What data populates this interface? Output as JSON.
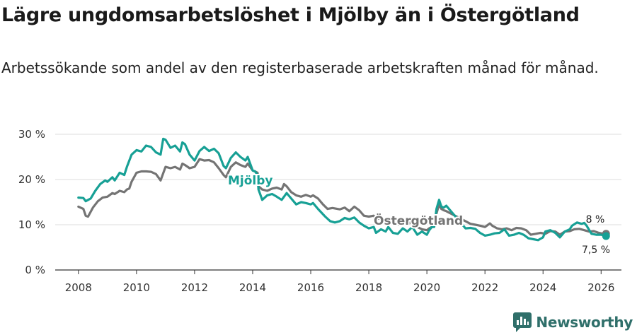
{
  "title": "Lägre ungdomsarbetslöshet i Mjölby än i Östergötland",
  "subtitle": "Arbetssökande som andel av den registerbaserade arbetskraften månad för månad.",
  "brand": "Newsworthy",
  "colors": {
    "mjolby": "#17a095",
    "ostergotland": "#747474",
    "grid": "#dddddd",
    "axis": "#333333"
  },
  "chart_data": {
    "type": "line",
    "title": "Lägre ungdomsarbetslöshet i Mjölby än i Östergötland",
    "xlabel": "",
    "ylabel": "",
    "xlim": [
      2007.2,
      2026.7
    ],
    "ylim": [
      0,
      30
    ],
    "y_ticks": [
      0,
      10,
      20,
      30
    ],
    "y_tick_labels": [
      "0 %",
      "10 %",
      "20 %",
      "30 %"
    ],
    "x_ticks": [
      2008,
      2010,
      2012,
      2014,
      2016,
      2018,
      2020,
      2022,
      2024,
      2026
    ],
    "x_tick_labels": [
      "2008",
      "2010",
      "2012",
      "2014",
      "2016",
      "2018",
      "2020",
      "2022",
      "2024",
      "2026"
    ],
    "series": [
      {
        "name": "Mjölby",
        "label": "Mjölby",
        "end_label": "7,5 %",
        "values": [
          [
            2008.0,
            16.0
          ],
          [
            2008.17,
            15.9
          ],
          [
            2008.25,
            15.2
          ],
          [
            2008.42,
            15.8
          ],
          [
            2008.58,
            17.5
          ],
          [
            2008.75,
            19.0
          ],
          [
            2008.92,
            19.8
          ],
          [
            2009.0,
            19.5
          ],
          [
            2009.17,
            20.5
          ],
          [
            2009.25,
            19.8
          ],
          [
            2009.42,
            21.5
          ],
          [
            2009.58,
            21.0
          ],
          [
            2009.67,
            22.8
          ],
          [
            2009.83,
            25.5
          ],
          [
            2010.0,
            26.5
          ],
          [
            2010.17,
            26.2
          ],
          [
            2010.33,
            27.5
          ],
          [
            2010.5,
            27.2
          ],
          [
            2010.67,
            26.0
          ],
          [
            2010.83,
            25.5
          ],
          [
            2010.92,
            29.0
          ],
          [
            2011.0,
            28.8
          ],
          [
            2011.17,
            27.0
          ],
          [
            2011.33,
            27.5
          ],
          [
            2011.5,
            26.2
          ],
          [
            2011.58,
            28.2
          ],
          [
            2011.67,
            27.8
          ],
          [
            2011.83,
            25.5
          ],
          [
            2012.0,
            24.2
          ],
          [
            2012.17,
            26.3
          ],
          [
            2012.33,
            27.2
          ],
          [
            2012.5,
            26.3
          ],
          [
            2012.67,
            26.8
          ],
          [
            2012.83,
            25.8
          ],
          [
            2013.0,
            23.0
          ],
          [
            2013.08,
            22.5
          ],
          [
            2013.25,
            24.8
          ],
          [
            2013.42,
            26.0
          ],
          [
            2013.58,
            25.0
          ],
          [
            2013.75,
            24.2
          ],
          [
            2013.83,
            25.0
          ],
          [
            2014.0,
            22.0
          ],
          [
            2014.08,
            21.8
          ],
          [
            2014.17,
            21.0
          ],
          [
            2014.2,
            17.8
          ],
          [
            2014.33,
            15.5
          ],
          [
            2014.5,
            16.5
          ],
          [
            2014.67,
            16.8
          ],
          [
            2014.83,
            16.2
          ],
          [
            2015.0,
            15.5
          ],
          [
            2015.17,
            17.0
          ],
          [
            2015.33,
            15.8
          ],
          [
            2015.5,
            14.5
          ],
          [
            2015.67,
            15.0
          ],
          [
            2015.83,
            14.8
          ],
          [
            2016.0,
            14.5
          ],
          [
            2016.08,
            14.8
          ],
          [
            2016.25,
            13.5
          ],
          [
            2016.5,
            11.8
          ],
          [
            2016.67,
            10.8
          ],
          [
            2016.83,
            10.5
          ],
          [
            2017.0,
            10.8
          ],
          [
            2017.17,
            11.5
          ],
          [
            2017.33,
            11.2
          ],
          [
            2017.5,
            11.6
          ],
          [
            2017.67,
            10.5
          ],
          [
            2017.83,
            9.8
          ],
          [
            2018.0,
            9.2
          ],
          [
            2018.17,
            9.5
          ],
          [
            2018.25,
            8.2
          ],
          [
            2018.42,
            9.0
          ],
          [
            2018.58,
            8.5
          ],
          [
            2018.67,
            9.5
          ],
          [
            2018.83,
            8.2
          ],
          [
            2019.0,
            8.0
          ],
          [
            2019.17,
            9.2
          ],
          [
            2019.33,
            8.5
          ],
          [
            2019.5,
            9.5
          ],
          [
            2019.67,
            7.8
          ],
          [
            2019.83,
            8.5
          ],
          [
            2020.0,
            7.8
          ],
          [
            2020.08,
            8.8
          ],
          [
            2020.17,
            9.5
          ],
          [
            2020.25,
            9.5
          ],
          [
            2020.33,
            13.5
          ],
          [
            2020.42,
            15.5
          ],
          [
            2020.5,
            14.0
          ],
          [
            2020.58,
            13.8
          ],
          [
            2020.67,
            14.2
          ],
          [
            2021.33,
            9.2
          ],
          [
            2021.5,
            9.3
          ],
          [
            2021.67,
            9.1
          ],
          [
            2021.83,
            8.2
          ],
          [
            2022.0,
            7.6
          ],
          [
            2022.17,
            7.8
          ],
          [
            2022.33,
            8.1
          ],
          [
            2022.5,
            8.2
          ],
          [
            2022.67,
            9.0
          ],
          [
            2022.83,
            7.6
          ],
          [
            2023.0,
            7.8
          ],
          [
            2023.17,
            8.2
          ],
          [
            2023.33,
            7.8
          ],
          [
            2023.5,
            7.0
          ],
          [
            2023.67,
            6.8
          ],
          [
            2023.83,
            6.6
          ],
          [
            2024.0,
            7.2
          ],
          [
            2024.08,
            8.5
          ],
          [
            2024.25,
            8.8
          ],
          [
            2024.42,
            8.2
          ],
          [
            2024.58,
            7.2
          ],
          [
            2024.75,
            8.5
          ],
          [
            2024.92,
            9.0
          ],
          [
            2025.0,
            9.8
          ],
          [
            2025.17,
            10.5
          ],
          [
            2025.33,
            10.2
          ],
          [
            2025.42,
            10.4
          ],
          [
            2025.5,
            9.8
          ],
          [
            2025.67,
            8.0
          ],
          [
            2025.83,
            7.8
          ],
          [
            2026.0,
            7.8
          ],
          [
            2026.17,
            7.5
          ]
        ]
      },
      {
        "name": "Östergötland",
        "label": "Östergötland",
        "end_label": "8 %",
        "values": [
          [
            2008.0,
            14.0
          ],
          [
            2008.17,
            13.5
          ],
          [
            2008.25,
            12.0
          ],
          [
            2008.33,
            11.8
          ],
          [
            2008.5,
            13.8
          ],
          [
            2008.67,
            15.2
          ],
          [
            2008.83,
            16.0
          ],
          [
            2009.0,
            16.2
          ],
          [
            2009.17,
            17.0
          ],
          [
            2009.25,
            16.8
          ],
          [
            2009.42,
            17.5
          ],
          [
            2009.58,
            17.2
          ],
          [
            2009.67,
            17.8
          ],
          [
            2009.75,
            18.0
          ],
          [
            2009.83,
            19.5
          ],
          [
            2010.0,
            21.5
          ],
          [
            2010.17,
            21.8
          ],
          [
            2010.33,
            21.8
          ],
          [
            2010.5,
            21.7
          ],
          [
            2010.67,
            21.2
          ],
          [
            2010.83,
            19.8
          ],
          [
            2011.0,
            22.8
          ],
          [
            2011.17,
            22.5
          ],
          [
            2011.33,
            22.8
          ],
          [
            2011.5,
            22.2
          ],
          [
            2011.58,
            23.5
          ],
          [
            2011.67,
            23.2
          ],
          [
            2011.83,
            22.5
          ],
          [
            2012.0,
            22.8
          ],
          [
            2012.17,
            24.5
          ],
          [
            2012.33,
            24.2
          ],
          [
            2012.5,
            24.3
          ],
          [
            2012.67,
            23.8
          ],
          [
            2012.83,
            22.5
          ],
          [
            2013.0,
            21.0
          ],
          [
            2013.08,
            20.5
          ],
          [
            2013.25,
            22.8
          ],
          [
            2013.42,
            23.8
          ],
          [
            2013.58,
            23.2
          ],
          [
            2013.75,
            22.8
          ],
          [
            2013.83,
            23.5
          ],
          [
            2014.0,
            22.0
          ],
          [
            2014.08,
            21.8
          ],
          [
            2014.17,
            21.5
          ],
          [
            2014.2,
            18.5
          ],
          [
            2014.33,
            17.8
          ],
          [
            2014.5,
            17.5
          ],
          [
            2014.67,
            18.0
          ],
          [
            2014.83,
            18.2
          ],
          [
            2015.0,
            17.8
          ],
          [
            2015.08,
            19.0
          ],
          [
            2015.17,
            18.5
          ],
          [
            2015.33,
            17.2
          ],
          [
            2015.5,
            16.5
          ],
          [
            2015.67,
            16.2
          ],
          [
            2015.83,
            16.6
          ],
          [
            2016.0,
            16.2
          ],
          [
            2016.08,
            16.5
          ],
          [
            2016.25,
            15.8
          ],
          [
            2016.42,
            14.5
          ],
          [
            2016.58,
            13.5
          ],
          [
            2016.75,
            13.7
          ],
          [
            2017.0,
            13.4
          ],
          [
            2017.17,
            13.8
          ],
          [
            2017.33,
            13.0
          ],
          [
            2017.5,
            14.0
          ],
          [
            2017.67,
            13.2
          ],
          [
            2017.83,
            12.0
          ],
          [
            2018.0,
            11.8
          ],
          [
            2018.17,
            12.0
          ],
          [
            2018.25,
            11.2
          ],
          [
            2018.42,
            11.5
          ],
          [
            2018.58,
            11.0
          ],
          [
            2018.67,
            11.5
          ],
          [
            2018.83,
            10.5
          ],
          [
            2019.0,
            10.0
          ],
          [
            2019.17,
            10.2
          ],
          [
            2019.33,
            10.0
          ],
          [
            2019.5,
            10.8
          ],
          [
            2019.67,
            9.5
          ],
          [
            2019.83,
            9.0
          ],
          [
            2020.0,
            8.8
          ],
          [
            2020.08,
            9.2
          ],
          [
            2020.17,
            9.5
          ],
          [
            2020.25,
            9.6
          ],
          [
            2020.33,
            12.5
          ],
          [
            2020.42,
            14.5
          ],
          [
            2020.5,
            13.5
          ],
          [
            2020.58,
            13.2
          ],
          [
            2020.67,
            13.0
          ],
          [
            2021.5,
            10.2
          ],
          [
            2021.67,
            10.0
          ],
          [
            2021.83,
            9.8
          ],
          [
            2022.0,
            9.5
          ],
          [
            2022.17,
            10.3
          ],
          [
            2022.25,
            9.8
          ],
          [
            2022.42,
            9.2
          ],
          [
            2022.58,
            9.0
          ],
          [
            2022.75,
            9.2
          ],
          [
            2022.92,
            8.8
          ],
          [
            2023.08,
            9.3
          ],
          [
            2023.25,
            9.2
          ],
          [
            2023.42,
            8.8
          ],
          [
            2023.58,
            7.8
          ],
          [
            2023.75,
            8.0
          ],
          [
            2023.92,
            8.2
          ],
          [
            2024.08,
            8.0
          ],
          [
            2024.25,
            8.6
          ],
          [
            2024.42,
            8.5
          ],
          [
            2024.58,
            7.8
          ],
          [
            2024.75,
            8.5
          ],
          [
            2024.92,
            8.6
          ],
          [
            2025.08,
            9.0
          ],
          [
            2025.25,
            9.1
          ],
          [
            2025.42,
            8.8
          ],
          [
            2025.58,
            8.5
          ],
          [
            2025.75,
            8.6
          ],
          [
            2025.92,
            8.2
          ],
          [
            2026.08,
            8.0
          ],
          [
            2026.17,
            8.0
          ]
        ]
      }
    ]
  }
}
